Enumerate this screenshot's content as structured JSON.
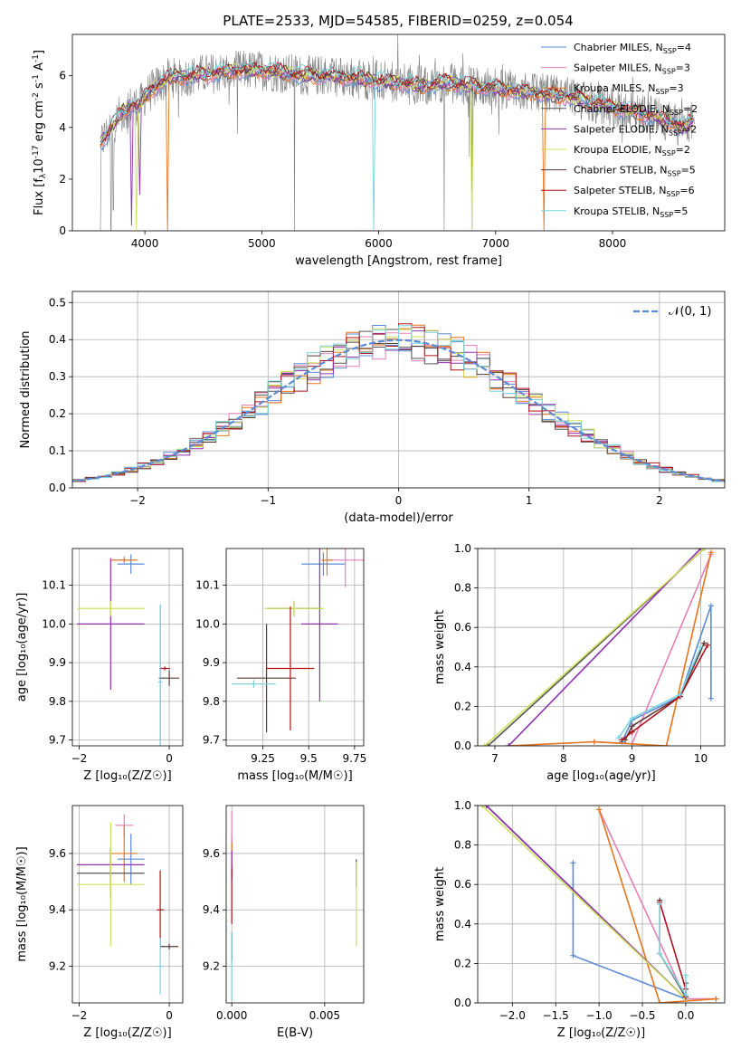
{
  "title": "PLATE=2533, MJD=54585, FIBERID=0259, z=0.054",
  "colors": {
    "Chabrier MILES": "#5b8bd6",
    "Salpeter MILES": "#e77fb7",
    "Kroupa MILES": "#e5751e",
    "Chabrier ELODIE": "#555555",
    "Salpeter ELODIE": "#8e32b0",
    "Kroupa ELODIE": "#cfe25a",
    "Chabrier STELIB": "#5a3a35",
    "Salpeter STELIB": "#b0111b",
    "Kroupa STELIB": "#79d4de",
    "data": "#808080",
    "gaussian": "#5b8bd6"
  },
  "chart_data": [
    {
      "type": "line",
      "name": "spectrum",
      "xlabel": "wavelength [Angstrom, rest frame]",
      "ylabel_parts": [
        "Flux [f",
        "λ",
        "10",
        "-17",
        " erg cm",
        "-2",
        " s",
        "-1",
        " A",
        "-1",
        "]"
      ],
      "xlim": [
        3380,
        8960
      ],
      "ylim": [
        0,
        7.6
      ],
      "xticks": [
        4000,
        5000,
        6000,
        7000,
        8000
      ],
      "yticks": [
        0,
        2,
        4,
        6
      ],
      "grid": false,
      "legend_position": "top-right",
      "legend": [
        {
          "model": "Chabrier MILES",
          "text": "Chabrier MILES, N",
          "sub": "SSP",
          "n": "=4"
        },
        {
          "model": "Salpeter MILES",
          "text": "Salpeter MILES, N",
          "sub": "SSP",
          "n": "=3"
        },
        {
          "model": "Kroupa MILES",
          "text": "Kroupa MILES, N",
          "sub": "SSP",
          "n": "=3"
        },
        {
          "model": "Chabrier ELODIE",
          "text": "Chabrier ELODIE, N",
          "sub": "SSP",
          "n": "=2"
        },
        {
          "model": "Salpeter ELODIE",
          "text": "Salpeter ELODIE, N",
          "sub": "SSP",
          "n": "=2"
        },
        {
          "model": "Kroupa ELODIE",
          "text": "Kroupa ELODIE, N",
          "sub": "SSP",
          "n": "=2"
        },
        {
          "model": "Chabrier STELIB",
          "text": "Chabrier STELIB, N",
          "sub": "SSP",
          "n": "=5"
        },
        {
          "model": "Salpeter STELIB",
          "text": "Salpeter STELIB, N",
          "sub": "SSP",
          "n": "=6"
        },
        {
          "model": "Kroupa STELIB",
          "text": "Kroupa STELIB, N",
          "sub": "SSP",
          "n": "=5"
        }
      ],
      "continuum": [
        [
          3620,
          3.4
        ],
        [
          3700,
          3.9
        ],
        [
          3800,
          4.6
        ],
        [
          3900,
          4.9
        ],
        [
          3950,
          4.8
        ],
        [
          4000,
          5.2
        ],
        [
          4100,
          5.6
        ],
        [
          4200,
          5.9
        ],
        [
          4400,
          6.0
        ],
        [
          4600,
          6.1
        ],
        [
          4800,
          6.2
        ],
        [
          5000,
          6.2
        ],
        [
          5200,
          6.1
        ],
        [
          5400,
          6.0
        ],
        [
          5600,
          6.0
        ],
        [
          5800,
          5.9
        ],
        [
          6000,
          5.8
        ],
        [
          6200,
          5.7
        ],
        [
          6400,
          5.6
        ],
        [
          6563,
          5.75
        ],
        [
          6800,
          5.6
        ],
        [
          7000,
          5.5
        ],
        [
          7200,
          5.4
        ],
        [
          7400,
          5.3
        ],
        [
          7600,
          5.2
        ],
        [
          7800,
          5.0
        ],
        [
          8000,
          4.8
        ],
        [
          8200,
          4.6
        ],
        [
          8400,
          4.4
        ],
        [
          8600,
          4.0
        ],
        [
          8700,
          4.3
        ]
      ],
      "model_dips": [
        [
          3890,
          0.2,
          "Salpeter ELODIE"
        ],
        [
          3930,
          0.05,
          "Kroupa ELODIE"
        ],
        [
          3960,
          1.4,
          "Salpeter ELODIE"
        ],
        [
          4200,
          0.0,
          "Kroupa MILES"
        ],
        [
          5960,
          0.0,
          "Kroupa STELIB"
        ],
        [
          6800,
          0.0,
          "Kroupa ELODIE"
        ],
        [
          7410,
          0.0,
          "Kroupa MILES"
        ]
      ],
      "data_dips": [
        [
          3620,
          0.0
        ],
        [
          3710,
          0.0
        ],
        [
          3730,
          0.8
        ],
        [
          5280,
          0.0
        ],
        [
          6560,
          0.0
        ],
        [
          6800,
          0.0
        ],
        [
          8320,
          3.5
        ],
        [
          8560,
          3.3
        ],
        [
          8640,
          3.5
        ]
      ]
    },
    {
      "type": "histogram",
      "name": "residuals",
      "xlabel": "(data-model)/error",
      "ylabel": "Normed distribution",
      "xlim": [
        -2.5,
        2.5
      ],
      "ylim": [
        0,
        0.53
      ],
      "xticks": [
        -2,
        -1,
        0,
        1,
        2
      ],
      "yticks": [
        0.0,
        0.1,
        0.2,
        0.3,
        0.4,
        0.5
      ],
      "grid": true,
      "bin_width": 0.1,
      "gaussian_label": "𝒩(0, 1)",
      "legend_position": "top-right"
    },
    {
      "type": "errorbar",
      "name": "age-vs-Z",
      "xlabel": "Z [log₁₀(Z/Z☉)]",
      "ylabel": "age  [log₁₀(age/yr)]",
      "xlim": [
        -2.15,
        0.3
      ],
      "ylim": [
        9.685,
        10.195
      ],
      "xticks": [
        -2,
        0
      ],
      "yticks": [
        9.7,
        9.8,
        9.9,
        10.0,
        10.1
      ],
      "ytick_labels": [
        "9.7",
        "9.8",
        "9.9",
        "10.0",
        "10.1"
      ],
      "grid": true,
      "points": [
        {
          "model": "Chabrier MILES",
          "x": -0.85,
          "xerr": 0.3,
          "y": 10.155,
          "yerr": 0.025
        },
        {
          "model": "Salpeter MILES",
          "x": -1.0,
          "xerr": 0.25,
          "y": 10.165,
          "yerr": 0.01
        },
        {
          "model": "Kroupa MILES",
          "x": -1.0,
          "xerr": 0.3,
          "y": 10.165,
          "yerr": 0.005
        },
        {
          "model": "Chabrier ELODIE",
          "x": -0.2,
          "xerr": 0.03,
          "y": 9.86,
          "yerr": 0.19
        },
        {
          "model": "Salpeter ELODIE",
          "x": -1.3,
          "xerr": 0.75,
          "y": 10.0,
          "yerr": 0.17
        },
        {
          "model": "Kroupa ELODIE",
          "x": -1.3,
          "xerr": 0.75,
          "y": 10.04,
          "yerr": 0.02
        },
        {
          "model": "Chabrier STELIB",
          "x": 0.0,
          "xerr": 0.22,
          "y": 9.86,
          "yerr": 0.02
        },
        {
          "model": "Salpeter STELIB",
          "x": -0.1,
          "xerr": 0.12,
          "y": 9.885,
          "yerr": 0.005
        },
        {
          "model": "Kroupa STELIB",
          "x": -0.2,
          "xerr": 0.05,
          "y": 9.85,
          "yerr": 0.2
        }
      ]
    },
    {
      "type": "errorbar",
      "name": "age-vs-mass",
      "xlabel": "mass [log₁₀(M/M☉)]",
      "ylabel": "",
      "xlim": [
        9.05,
        9.8
      ],
      "ylim": [
        9.685,
        10.195
      ],
      "xticks": [
        9.25,
        9.5,
        9.75
      ],
      "yticks": [
        9.7,
        9.8,
        9.9,
        10.0,
        10.1
      ],
      "ytick_labels": [
        "9.7",
        "9.8",
        "9.9",
        "10.0",
        "10.1"
      ],
      "grid": true,
      "points": [
        {
          "model": "Chabrier MILES",
          "x": 9.58,
          "xerr": 0.12,
          "y": 10.155,
          "yerr": 0.03
        },
        {
          "model": "Salpeter MILES",
          "x": 9.7,
          "xerr": 0.1,
          "y": 10.165,
          "yerr": 0.07
        },
        {
          "model": "Kroupa MILES",
          "x": 9.6,
          "xerr": 0.03,
          "y": 10.165,
          "yerr": 0.04
        },
        {
          "model": "Chabrier ELODIE",
          "x": 9.42,
          "xerr": 0.15,
          "y": 10.04,
          "yerr": 0.02
        },
        {
          "model": "Salpeter ELODIE",
          "x": 9.56,
          "xerr": 0.1,
          "y": 10.0,
          "yerr": 0.2
        },
        {
          "model": "Kroupa ELODIE",
          "x": 9.42,
          "xerr": 0.16,
          "y": 10.04,
          "yerr": 0.02
        },
        {
          "model": "Chabrier STELIB",
          "x": 9.27,
          "xerr": 0.16,
          "y": 9.86,
          "yerr": 0.14
        },
        {
          "model": "Salpeter STELIB",
          "x": 9.4,
          "xerr": 0.13,
          "y": 9.885,
          "yerr": 0.16
        },
        {
          "model": "Kroupa STELIB",
          "x": 9.2,
          "xerr": 0.12,
          "y": 9.845,
          "yerr": 0.01
        }
      ]
    },
    {
      "type": "line",
      "name": "mass-weight-vs-age",
      "xlabel": "age  [log₁₀(age/yr)]",
      "ylabel": "mass weight",
      "xlim": [
        6.75,
        10.35
      ],
      "ylim": [
        0,
        1
      ],
      "xticks": [
        7,
        8,
        9,
        10
      ],
      "yticks": [
        0.0,
        0.2,
        0.4,
        0.6,
        0.8,
        1.0
      ],
      "grid": true,
      "series": [
        {
          "model": "Chabrier MILES",
          "x": [
            8.85,
            9.0,
            9.7,
            10.15,
            10.15
          ],
          "y": [
            0.02,
            0.13,
            0.25,
            0.71,
            0.24
          ]
        },
        {
          "model": "Salpeter MILES",
          "x": [
            8.45,
            9.0,
            10.15
          ],
          "y": [
            0.02,
            0.01,
            0.97
          ]
        },
        {
          "model": "Kroupa MILES",
          "x": [
            7.2,
            8.45,
            9.5,
            10.15
          ],
          "y": [
            0.0,
            0.02,
            0.0,
            0.98
          ]
        },
        {
          "model": "Chabrier ELODIE",
          "x": [
            6.9,
            10.05
          ],
          "y": [
            0.0,
            1.0
          ]
        },
        {
          "model": "Salpeter ELODIE",
          "x": [
            7.2,
            10.0
          ],
          "y": [
            0.0,
            1.0
          ]
        },
        {
          "model": "Kroupa ELODIE",
          "x": [
            6.85,
            10.05
          ],
          "y": [
            0.0,
            1.0
          ]
        },
        {
          "model": "Chabrier STELIB",
          "x": [
            8.9,
            9.0,
            9.7,
            10.05
          ],
          "y": [
            0.03,
            0.1,
            0.25,
            0.52
          ]
        },
        {
          "model": "Salpeter STELIB",
          "x": [
            8.85,
            9.0,
            9.7,
            10.1
          ],
          "y": [
            0.03,
            0.07,
            0.25,
            0.51
          ]
        },
        {
          "model": "Kroupa STELIB",
          "x": [
            8.8,
            9.0,
            9.7,
            10.0
          ],
          "y": [
            0.04,
            0.14,
            0.26,
            0.5
          ]
        }
      ]
    },
    {
      "type": "errorbar",
      "name": "mass-vs-Z",
      "xlabel": "Z [log₁₀(Z/Z☉)]",
      "ylabel": "mass [log₁₀(M/M☉)]",
      "xlim": [
        -2.15,
        0.3
      ],
      "ylim": [
        9.07,
        9.77
      ],
      "xticks": [
        -2,
        0
      ],
      "yticks": [
        9.2,
        9.4,
        9.6
      ],
      "ytick_labels": [
        "9.2",
        "9.4",
        "9.6"
      ],
      "grid": true,
      "points": [
        {
          "model": "Chabrier MILES",
          "x": -0.85,
          "xerr": 0.3,
          "y": 9.58,
          "yerr": 0.09
        },
        {
          "model": "Salpeter MILES",
          "x": -1.0,
          "xerr": 0.2,
          "y": 9.7,
          "yerr": 0.04
        },
        {
          "model": "Kroupa MILES",
          "x": -1.0,
          "xerr": 0.3,
          "y": 9.6,
          "yerr": 0.1
        },
        {
          "model": "Chabrier ELODIE",
          "x": -1.3,
          "xerr": 0.75,
          "y": 9.53,
          "yerr": 0.09
        },
        {
          "model": "Salpeter ELODIE",
          "x": -1.3,
          "xerr": 0.75,
          "y": 9.56,
          "yerr": 0.05
        },
        {
          "model": "Kroupa ELODIE",
          "x": -1.3,
          "xerr": 0.75,
          "y": 9.49,
          "yerr": 0.22
        },
        {
          "model": "Chabrier STELIB",
          "x": 0.0,
          "xerr": 0.2,
          "y": 9.27,
          "yerr": 0.01
        },
        {
          "model": "Salpeter STELIB",
          "x": -0.2,
          "xerr": 0.08,
          "y": 9.4,
          "yerr": 0.14
        },
        {
          "model": "Kroupa STELIB",
          "x": -0.2,
          "xerr": 0.05,
          "y": 9.2,
          "yerr": 0.1
        }
      ]
    },
    {
      "type": "errorbar",
      "name": "mass-vs-EBV",
      "xlabel": "E(B-V)",
      "ylabel": "",
      "xlim": [
        -0.0003,
        0.0071
      ],
      "ylim": [
        9.07,
        9.77
      ],
      "xticks": [
        0.0,
        0.005
      ],
      "xtick_labels": [
        "0.000",
        "0.005"
      ],
      "yticks": [
        9.2,
        9.4,
        9.6
      ],
      "ytick_labels": [
        "9.2",
        "9.4",
        "9.6"
      ],
      "grid": true,
      "points": [
        {
          "model": "Chabrier MILES",
          "x": 0.0,
          "xerr": 0.0,
          "y": 9.58,
          "yerr": 0.08
        },
        {
          "model": "Salpeter MILES",
          "x": 0.0,
          "xerr": 0.0,
          "y": 9.65,
          "yerr": 0.1
        },
        {
          "model": "Kroupa MILES",
          "x": 0.0,
          "xerr": 0.0,
          "y": 9.58,
          "yerr": 0.06
        },
        {
          "model": "Chabrier ELODIE",
          "x": 0.0067,
          "xerr": 0.0,
          "y": 9.53,
          "yerr": 0.05
        },
        {
          "model": "Salpeter ELODIE",
          "x": 0.0,
          "xerr": 0.0,
          "y": 9.56,
          "yerr": 0.05
        },
        {
          "model": "Kroupa ELODIE",
          "x": 0.0067,
          "xerr": 0.0,
          "y": 9.42,
          "yerr": 0.15
        },
        {
          "model": "Chabrier STELIB",
          "x": 0.0,
          "xerr": 0.0,
          "y": 9.27,
          "yerr": 0.05
        },
        {
          "model": "Salpeter STELIB",
          "x": 0.0,
          "xerr": 0.0,
          "y": 9.45,
          "yerr": 0.1
        },
        {
          "model": "Kroupa STELIB",
          "x": 0.0,
          "xerr": 0.0,
          "y": 9.2,
          "yerr": 0.12
        }
      ]
    },
    {
      "type": "line",
      "name": "mass-weight-vs-Z",
      "xlabel": "Z [log₁₀(Z/Z☉)]",
      "ylabel": "mass weight",
      "xlim": [
        -2.4,
        0.45
      ],
      "ylim": [
        0,
        1
      ],
      "xticks": [
        -2.0,
        -1.5,
        -1.0,
        -0.5,
        0.0
      ],
      "xtick_labels": [
        "−2.0",
        "−1.5",
        "−1.0",
        "−0.5",
        "0.0"
      ],
      "yticks": [
        0.0,
        0.2,
        0.4,
        0.6,
        0.8,
        1.0
      ],
      "grid": true,
      "series": [
        {
          "model": "Chabrier MILES",
          "x": [
            -1.3,
            -1.3,
            0.0,
            0.0
          ],
          "y": [
            0.71,
            0.24,
            0.02,
            0.02
          ]
        },
        {
          "model": "Salpeter MILES",
          "x": [
            -1.0,
            0.0,
            0.35
          ],
          "y": [
            0.98,
            0.02,
            0.02
          ]
        },
        {
          "model": "Kroupa MILES",
          "x": [
            -1.0,
            -0.3,
            0.35
          ],
          "y": [
            0.98,
            0.0,
            0.02
          ]
        },
        {
          "model": "Chabrier ELODIE",
          "x": [
            -2.3,
            0.0
          ],
          "y": [
            1.0,
            0.02
          ]
        },
        {
          "model": "Salpeter ELODIE",
          "x": [
            -2.3,
            0.0
          ],
          "y": [
            1.0,
            0.02
          ]
        },
        {
          "model": "Kroupa ELODIE",
          "x": [
            -2.35,
            0.0
          ],
          "y": [
            1.0,
            0.02
          ]
        },
        {
          "model": "Chabrier STELIB",
          "x": [
            -0.3,
            -0.3,
            0.0,
            0.0
          ],
          "y": [
            0.52,
            0.25,
            0.03,
            0.1
          ]
        },
        {
          "model": "Salpeter STELIB",
          "x": [
            -0.3,
            0.0,
            0.0
          ],
          "y": [
            0.51,
            0.07,
            0.03
          ]
        },
        {
          "model": "Kroupa STELIB",
          "x": [
            -0.3,
            -0.3,
            0.0,
            0.0
          ],
          "y": [
            0.5,
            0.25,
            0.04,
            0.14
          ]
        }
      ]
    }
  ]
}
